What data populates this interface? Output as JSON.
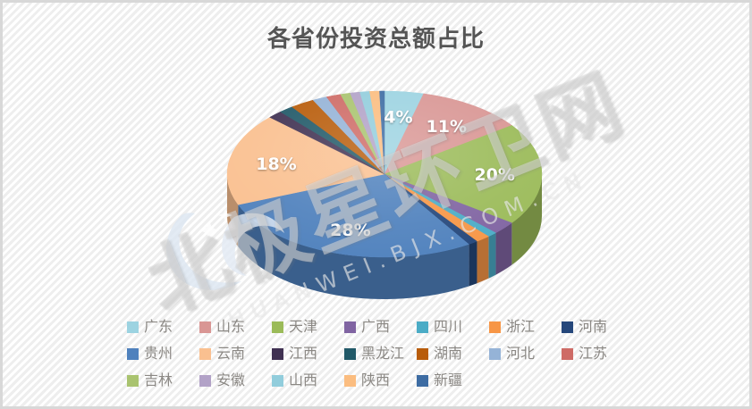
{
  "chart_data": {
    "type": "pie",
    "effect": "3d",
    "title": "各省份投资总额占比",
    "unit": "%",
    "data_label_threshold": 4,
    "legend_position": "bottom",
    "legend_rows": [
      7,
      7,
      5
    ],
    "categories": [
      "广东",
      "山东",
      "天津",
      "广西",
      "四川",
      "浙江",
      "河南",
      "贵州",
      "云南",
      "江西",
      "黑龙江",
      "湖南",
      "河北",
      "江苏",
      "吉林",
      "安徽",
      "山西",
      "陕西",
      "新疆"
    ],
    "values": [
      4,
      11,
      20,
      2.5,
      1,
      1.5,
      1,
      28,
      18,
      1.5,
      1.5,
      2.5,
      1.5,
      1.5,
      1,
      1,
      1,
      1,
      0.5
    ],
    "colors": [
      "#9CD3E1",
      "#D99694",
      "#9BBB59",
      "#8064A2",
      "#4BACC6",
      "#F79646",
      "#25477B",
      "#4F81BD",
      "#FAC090",
      "#403152",
      "#215968",
      "#B85C0A",
      "#95B3D7",
      "#CE6B66",
      "#A9C36F",
      "#B2A2C7",
      "#92CDDC",
      "#FBBD80",
      "#3D6CA3"
    ],
    "shown_data_labels": [
      "4%",
      "11%",
      "20%",
      "28%",
      "18%"
    ]
  },
  "watermark": {
    "cn": "北极星环卫网",
    "latin": "HUANWEI.BJX.COM.CN"
  }
}
